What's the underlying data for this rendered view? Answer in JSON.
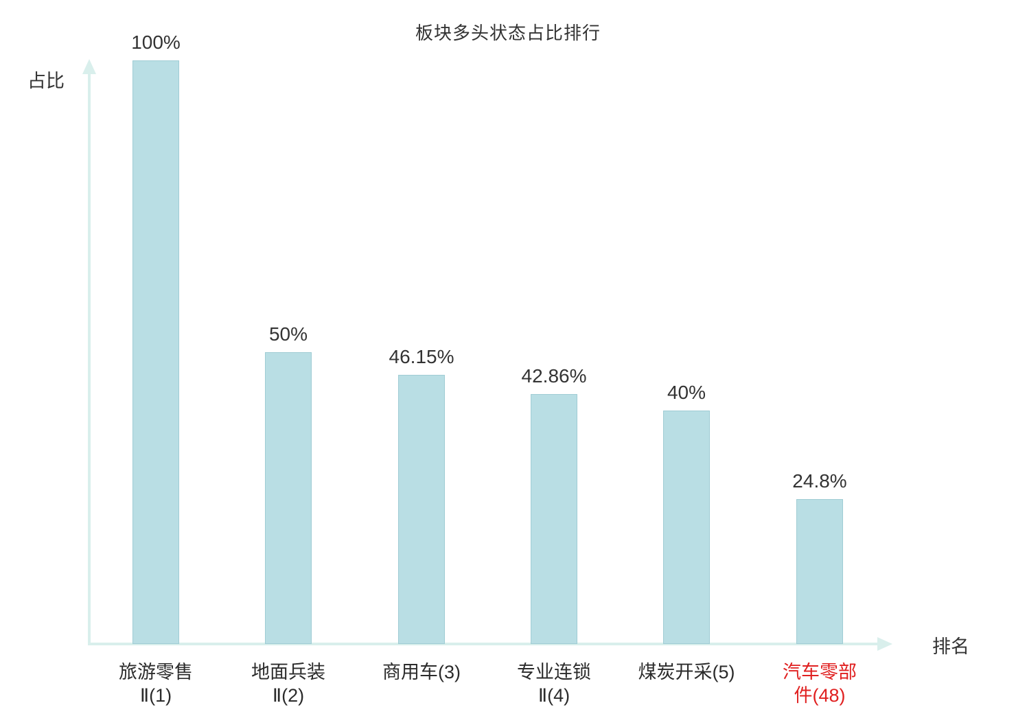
{
  "title": "板块多头状态占比排行",
  "axes": {
    "ylabel": "占比",
    "xlabel": "排名"
  },
  "colors": {
    "bar_fill": "#b9dee4",
    "bar_border": "#9fccd4",
    "axis": "#d9efec",
    "text": "#333333",
    "highlight": "#e02020"
  },
  "chart_data": {
    "type": "bar",
    "title": "板块多头状态占比排行",
    "xlabel": "排名",
    "ylabel": "占比",
    "ylim": [
      0,
      100
    ],
    "grid": false,
    "legend_position": "none",
    "categories": [
      "旅游零售Ⅱ(1)",
      "地面兵装Ⅱ(2)",
      "商用车(3)",
      "专业连锁Ⅱ(4)",
      "煤炭开采(5)",
      "汽车零部件(48)"
    ],
    "category_lines": [
      [
        "旅游零售",
        "Ⅱ(1)"
      ],
      [
        "地面兵装",
        "Ⅱ(2)"
      ],
      [
        "商用车(3)"
      ],
      [
        "专业连锁",
        "Ⅱ(4)"
      ],
      [
        "煤炭开采(5)"
      ],
      [
        "汽车零部",
        "件(48)"
      ]
    ],
    "values": [
      100,
      50,
      46.15,
      42.86,
      40,
      24.8
    ],
    "value_labels": [
      "100%",
      "50%",
      "46.15%",
      "42.86%",
      "40%",
      "24.8%"
    ],
    "highlighted_index": 5
  }
}
